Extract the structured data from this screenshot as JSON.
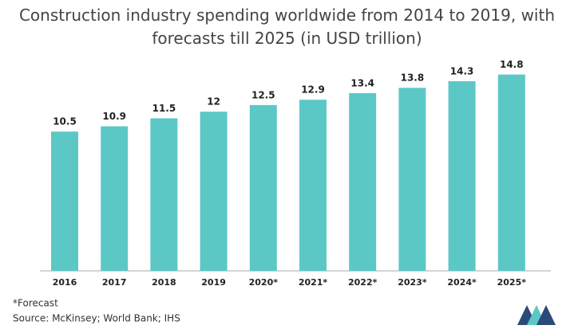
{
  "chart_data": {
    "type": "bar",
    "title": "Construction industry spending worldwide from 2014 to 2019, with forecasts till 2025 (in USD trillion)",
    "categories": [
      "2016",
      "2017",
      "2018",
      "2019",
      "2020*",
      "2021*",
      "2022*",
      "2023*",
      "2024*",
      "2025*"
    ],
    "values": [
      10.5,
      10.9,
      11.5,
      12,
      12.5,
      12.9,
      13.4,
      13.8,
      14.3,
      14.8
    ],
    "color": "#5cc8c6",
    "note": "*Forecast",
    "source": "Source: McKinsey; World Bank; IHS"
  }
}
